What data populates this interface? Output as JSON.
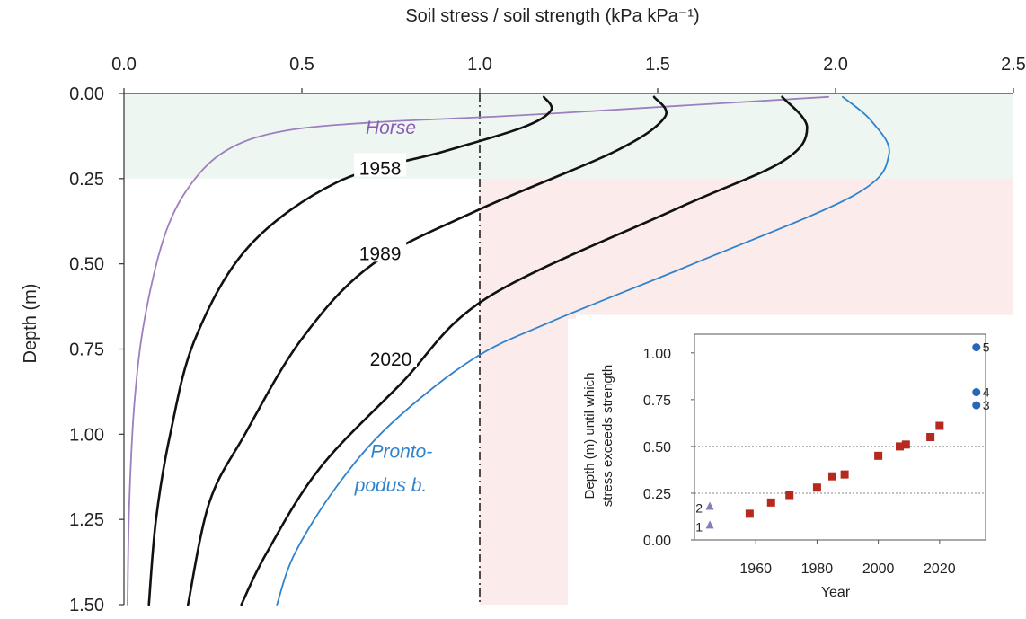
{
  "chart_data": [
    {
      "type": "line",
      "title": "",
      "xlabel": "Soil stress / soil strength (kPa kPa⁻¹)",
      "ylabel": "Depth (m)",
      "x_axis_position": "top",
      "y_inverted": true,
      "xlim": [
        0,
        2.5
      ],
      "ylim": [
        0,
        1.5
      ],
      "x_ticks": [
        "0.0",
        "0.5",
        "1.0",
        "1.5",
        "2.0",
        "2.5"
      ],
      "y_ticks": [
        "0.00",
        "0.25",
        "0.50",
        "0.75",
        "1.00",
        "1.25",
        "1.50"
      ],
      "reference_line": {
        "x": 1.0,
        "style": "dash-dot"
      },
      "shaded_regions": [
        {
          "x": [
            0,
            2.5
          ],
          "y": [
            0,
            0.25
          ],
          "color": "#eef6f1"
        },
        {
          "x": [
            1.0,
            2.5
          ],
          "y": [
            0.25,
            0.65
          ],
          "color": "#fcebeb"
        },
        {
          "x": [
            1.0,
            1.27
          ],
          "y": [
            0.65,
            1.5
          ],
          "color": "#fcebeb"
        }
      ],
      "series": [
        {
          "name": "Horse",
          "color": "#9d7fbf",
          "label_style": "italic",
          "points": [
            [
              1.98,
              0.01
            ],
            [
              1.5,
              0.04
            ],
            [
              1.1,
              0.065
            ],
            [
              0.7,
              0.085
            ],
            [
              0.45,
              0.11
            ],
            [
              0.3,
              0.16
            ],
            [
              0.2,
              0.25
            ],
            [
              0.12,
              0.4
            ],
            [
              0.06,
              0.65
            ],
            [
              0.03,
              0.9
            ],
            [
              0.015,
              1.2
            ],
            [
              0.01,
              1.5
            ]
          ]
        },
        {
          "name": "1958",
          "color": "#111111",
          "label_style": "normal",
          "points": [
            [
              1.18,
              0.01
            ],
            [
              1.2,
              0.05
            ],
            [
              1.12,
              0.1
            ],
            [
              0.9,
              0.17
            ],
            [
              0.6,
              0.26
            ],
            [
              0.35,
              0.45
            ],
            [
              0.2,
              0.72
            ],
            [
              0.13,
              1.0
            ],
            [
              0.09,
              1.25
            ],
            [
              0.07,
              1.5
            ]
          ]
        },
        {
          "name": "1989",
          "color": "#111111",
          "label_style": "normal",
          "points": [
            [
              1.49,
              0.01
            ],
            [
              1.52,
              0.07
            ],
            [
              1.38,
              0.17
            ],
            [
              1.0,
              0.34
            ],
            [
              0.7,
              0.5
            ],
            [
              0.5,
              0.72
            ],
            [
              0.34,
              1.0
            ],
            [
              0.24,
              1.2
            ],
            [
              0.18,
              1.5
            ]
          ]
        },
        {
          "name": "2020",
          "color": "#111111",
          "label_style": "normal",
          "points": [
            [
              1.85,
              0.01
            ],
            [
              1.92,
              0.1
            ],
            [
              1.85,
              0.2
            ],
            [
              1.55,
              0.34
            ],
            [
              1.02,
              0.6
            ],
            [
              0.78,
              0.85
            ],
            [
              0.55,
              1.1
            ],
            [
              0.4,
              1.35
            ],
            [
              0.33,
              1.5
            ]
          ]
        },
        {
          "name": "Pronto-podus b.",
          "color": "#2f82cc",
          "label_style": "italic",
          "points": [
            [
              2.02,
              0.01
            ],
            [
              2.1,
              0.08
            ],
            [
              2.15,
              0.18
            ],
            [
              2.05,
              0.3
            ],
            [
              1.6,
              0.5
            ],
            [
              1.2,
              0.67
            ],
            [
              0.98,
              0.78
            ],
            [
              0.75,
              0.97
            ],
            [
              0.6,
              1.15
            ],
            [
              0.48,
              1.35
            ],
            [
              0.43,
              1.5
            ]
          ]
        }
      ],
      "labels": [
        {
          "text": "Horse",
          "x": 0.75,
          "y": 0.1,
          "color": "#8a5bb5",
          "italic": true
        },
        {
          "text": "1958",
          "x": 0.72,
          "y": 0.22,
          "color": "#111111",
          "italic": false
        },
        {
          "text": "1989",
          "x": 0.72,
          "y": 0.47,
          "color": "#111111",
          "italic": false
        },
        {
          "text": "2020",
          "x": 0.75,
          "y": 0.78,
          "color": "#111111",
          "italic": false
        },
        {
          "text": "Pronto-",
          "x": 0.78,
          "y": 1.05,
          "color": "#2f82cc",
          "italic": true
        },
        {
          "text": "podus b.",
          "x": 0.75,
          "y": 1.15,
          "color": "#2f82cc",
          "italic": true
        }
      ]
    },
    {
      "type": "scatter",
      "title": "",
      "xlabel": "Year",
      "ylabel_lines": [
        "Depth (m) until which",
        "stress exceeds strength"
      ],
      "xlim": [
        1940,
        2035
      ],
      "ylim": [
        0,
        1.1
      ],
      "x_ticks": [
        "1960",
        "1980",
        "2000",
        "2020"
      ],
      "x_tick_values": [
        1960,
        1980,
        2000,
        2020
      ],
      "y_ticks": [
        "0.00",
        "0.25",
        "0.50",
        "0.75",
        "1.00"
      ],
      "y_tick_values": [
        0,
        0.25,
        0.5,
        0.75,
        1.0
      ],
      "reference_lines_y": [
        0.25,
        0.5
      ],
      "series": [
        {
          "name": "",
          "marker": "square",
          "color": "#b52a1f",
          "points": [
            [
              1958,
              0.14
            ],
            [
              1965,
              0.2
            ],
            [
              1971,
              0.24
            ],
            [
              1980,
              0.28
            ],
            [
              1985,
              0.34
            ],
            [
              1989,
              0.35
            ],
            [
              2000,
              0.45
            ],
            [
              2007,
              0.5
            ],
            [
              2009,
              0.51
            ],
            [
              2017,
              0.55
            ],
            [
              2020,
              0.61
            ]
          ]
        },
        {
          "name": "",
          "marker": "triangle",
          "color": "#8b7bb8",
          "points": [
            [
              1945,
              0.08
            ],
            [
              1945,
              0.18
            ]
          ],
          "point_labels": [
            "1",
            "2"
          ]
        },
        {
          "name": "",
          "marker": "circle",
          "color": "#2a66b8",
          "points": [
            [
              2032,
              0.72
            ],
            [
              2032,
              0.79
            ],
            [
              2032,
              1.03
            ]
          ],
          "point_labels": [
            "3",
            "4",
            "5"
          ]
        }
      ]
    }
  ]
}
